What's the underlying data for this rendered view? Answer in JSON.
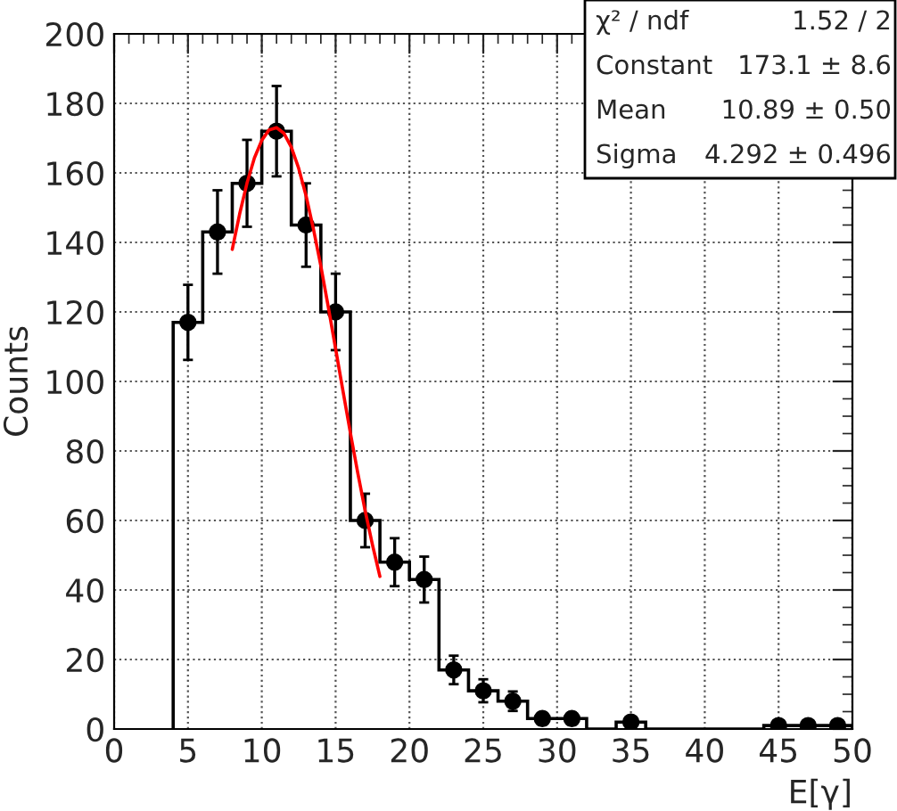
{
  "chart_data": {
    "type": "histogram",
    "xlabel": "E[γ]",
    "ylabel": "Counts",
    "bins": [
      4,
      6,
      8,
      10,
      12,
      14,
      16,
      18,
      20,
      22,
      24,
      26,
      28,
      30,
      32,
      34,
      36,
      38,
      40,
      42,
      44,
      46,
      48,
      50
    ],
    "values": [
      117,
      143,
      157,
      172,
      145,
      120,
      60,
      48,
      43,
      17,
      11,
      8,
      3,
      3,
      0,
      2,
      0,
      0,
      0,
      0,
      1,
      1,
      1
    ],
    "color": "#000000",
    "series": [
      {
        "type": "scatter",
        "color": "#000000",
        "marker": "circle",
        "x": [
          5,
          7,
          9,
          11,
          13,
          15,
          17,
          19,
          21,
          23,
          25,
          27,
          29,
          31,
          35,
          45,
          47,
          49
        ],
        "values": [
          117,
          143,
          157,
          172,
          145,
          120,
          60,
          48,
          43,
          17,
          11,
          8,
          3,
          3,
          2,
          1,
          1,
          1
        ],
        "errors": [
          10.8,
          12,
          12.5,
          13,
          12,
          11,
          7.7,
          6.9,
          6.6,
          4.1,
          3.3,
          2.8,
          1.7,
          1.7,
          1.4,
          1,
          1,
          1
        ]
      },
      {
        "type": "line",
        "color": "#ff0000",
        "marker": "none",
        "x": [
          8,
          8.5,
          9,
          9.5,
          10,
          10.5,
          11,
          11.5,
          12,
          12.5,
          13,
          13.5,
          14,
          14.5,
          15,
          15.5,
          16,
          16.5,
          17,
          17.5,
          18
        ],
        "values": [
          138.0,
          148.2,
          157.1,
          164.3,
          169.4,
          172.4,
          173.0,
          171.4,
          167.4,
          161.3,
          153.4,
          143.8,
          133.2,
          121.5,
          109.4,
          97.2,
          85.2,
          73.7,
          62.8,
          52.9,
          43.9
        ]
      }
    ],
    "xlim": [
      0,
      50
    ],
    "xticks": [
      0,
      5,
      10,
      15,
      20,
      25,
      30,
      35,
      40,
      45,
      50
    ],
    "ylim": [
      0,
      200
    ],
    "yticks": [
      0,
      20,
      40,
      60,
      80,
      100,
      120,
      140,
      160,
      180,
      200
    ],
    "grid": true,
    "annotations": [
      "χ² / ndf",
      "1.52 / 2",
      "Constant",
      "173.1 ± 8.6",
      "Mean",
      "10.89 ± 0.50",
      "Sigma",
      "4.292 ± 0.496"
    ]
  }
}
